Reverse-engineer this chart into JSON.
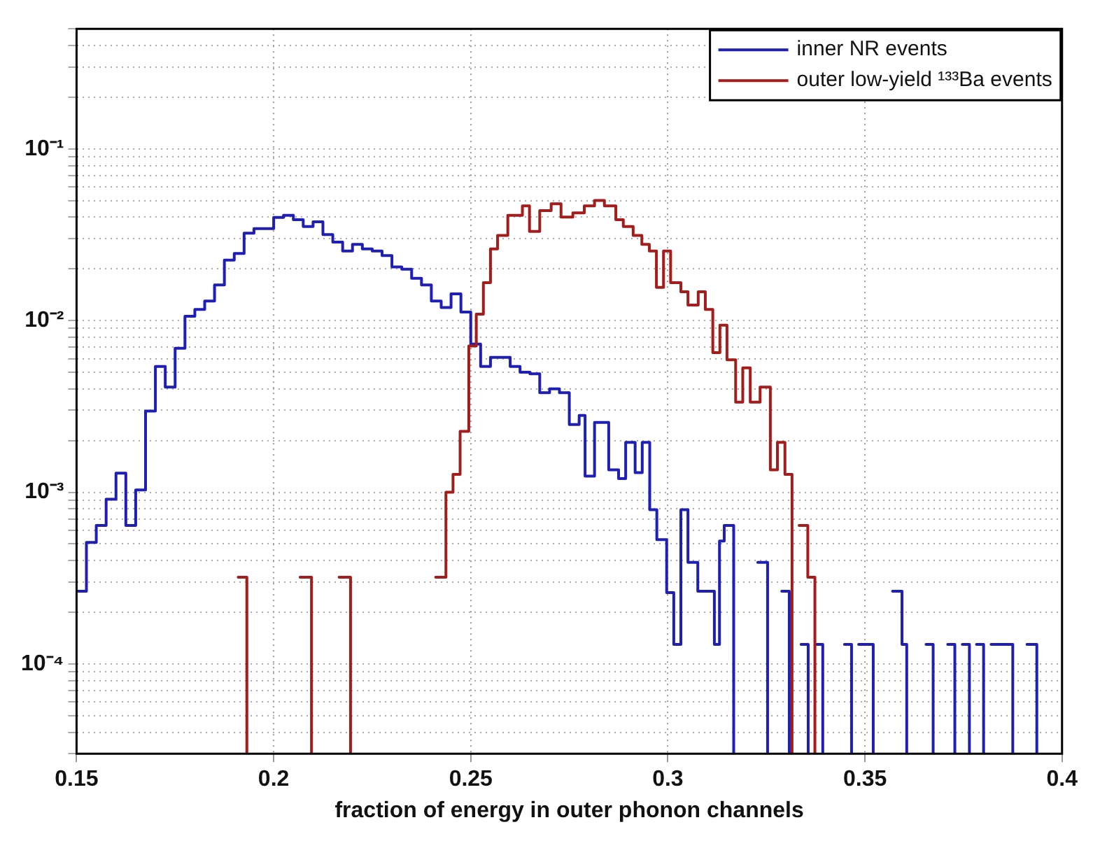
{
  "chart_data": {
    "type": "step",
    "xlabel": "fraction of energy in outer phonon channels",
    "xlim": [
      0.15,
      0.4
    ],
    "xticks": [
      0.15,
      0.2,
      0.25,
      0.3,
      0.35,
      0.4
    ],
    "ylim": [
      3e-05,
      0.5
    ],
    "log": "y",
    "grid": true,
    "legend": "top right",
    "yticks": [
      {
        "value": 3e-05,
        "label": null
      },
      {
        "value": 4e-05,
        "label": null
      },
      {
        "value": 5e-05,
        "label": null
      },
      {
        "value": 6e-05,
        "label": null
      },
      {
        "value": 7e-05,
        "label": null
      },
      {
        "value": 8e-05,
        "label": null
      },
      {
        "value": 9e-05,
        "label": null
      },
      {
        "value": 0.0001,
        "label": "10⁻⁴"
      },
      {
        "value": 0.0002,
        "label": null
      },
      {
        "value": 0.0003,
        "label": null
      },
      {
        "value": 0.0004,
        "label": null
      },
      {
        "value": 0.0005,
        "label": null
      },
      {
        "value": 0.0006,
        "label": null
      },
      {
        "value": 0.0007,
        "label": null
      },
      {
        "value": 0.0008,
        "label": null
      },
      {
        "value": 0.0009,
        "label": null
      },
      {
        "value": 0.001,
        "label": "10⁻³"
      },
      {
        "value": 0.002,
        "label": null
      },
      {
        "value": 0.003,
        "label": null
      },
      {
        "value": 0.004,
        "label": null
      },
      {
        "value": 0.005,
        "label": null
      },
      {
        "value": 0.006,
        "label": null
      },
      {
        "value": 0.007,
        "label": null
      },
      {
        "value": 0.008,
        "label": null
      },
      {
        "value": 0.009,
        "label": null
      },
      {
        "value": 0.01,
        "label": "10⁻²"
      },
      {
        "value": 0.02,
        "label": null
      },
      {
        "value": 0.03,
        "label": null
      },
      {
        "value": 0.04,
        "label": null
      },
      {
        "value": 0.05,
        "label": null
      },
      {
        "value": 0.06,
        "label": null
      },
      {
        "value": 0.07,
        "label": null
      },
      {
        "value": 0.08,
        "label": null
      },
      {
        "value": 0.09,
        "label": null
      },
      {
        "value": 0.1,
        "label": "10⁻¹"
      },
      {
        "value": 0.2,
        "label": null
      },
      {
        "value": 0.3,
        "label": null
      },
      {
        "value": 0.4,
        "label": null
      },
      {
        "value": 0.5,
        "label": null
      }
    ],
    "series": [
      {
        "name": "inner NR events",
        "color": "#1f1fb4",
        "x": [
          0.15,
          0.1525,
          0.155,
          0.1575,
          0.16,
          0.1625,
          0.165,
          0.1675,
          0.17,
          0.1725,
          0.175,
          0.1775,
          0.18,
          0.1825,
          0.185,
          0.1875,
          0.19,
          0.1925,
          0.195,
          0.1975,
          0.2,
          0.2025,
          0.205,
          0.2075,
          0.21,
          0.2125,
          0.215,
          0.2175,
          0.22,
          0.2225,
          0.225,
          0.2275,
          0.23,
          0.2325,
          0.235,
          0.2375,
          0.24,
          0.2425,
          0.245,
          0.2475,
          0.25,
          0.2525,
          0.255,
          0.2575,
          0.26,
          0.2625,
          0.265,
          0.2675,
          0.27,
          0.2725,
          0.275,
          0.2775,
          0.279,
          0.2814,
          0.285,
          0.2875,
          0.2893,
          0.2917,
          0.2935,
          0.2954,
          0.2972,
          0.2997,
          0.3015,
          0.3033,
          0.3051,
          0.3076,
          0.3118,
          0.3131,
          0.3143,
          0.3167
        ],
        "values": [
          0.000265,
          0.00051,
          0.00064,
          0.00091,
          0.00129,
          0.00064,
          0.00103,
          0.00297,
          0.0054,
          0.0041,
          0.0069,
          0.0106,
          0.0116,
          0.013,
          0.0161,
          0.0225,
          0.0246,
          0.0323,
          0.0343,
          0.0343,
          0.0399,
          0.041,
          0.0387,
          0.0353,
          0.0376,
          0.0317,
          0.0286,
          0.0254,
          0.0278,
          0.0261,
          0.0254,
          0.0239,
          0.0205,
          0.0199,
          0.0176,
          0.0161,
          0.013,
          0.0119,
          0.0143,
          0.0112,
          0.0073,
          0.0054,
          0.0061,
          0.0061,
          0.0054,
          0.005,
          0.0049,
          0.0038,
          0.004,
          0.0038,
          0.00248,
          0.0028,
          0.00124,
          0.00255,
          0.00135,
          0.0012,
          0.00195,
          0.0013,
          0.00195,
          0.00079,
          0.00053,
          0.00026,
          0.00013,
          0.00079,
          0.00039,
          0.000265,
          0.00013,
          0.00052,
          0.00064,
          0.00064
        ]
      },
      {
        "color": "#1f1fb4",
        "x": [
          0.3228,
          0.3253
        ],
        "values": [
          0.00039,
          0.00039
        ]
      },
      {
        "color": "#1f1fb4",
        "x": [
          0.3289,
          0.3308
        ],
        "values": [
          0.000265,
          0.000265
        ]
      },
      {
        "color": "#1f1fb4",
        "x": [
          0.3338,
          0.3356
        ],
        "values": [
          0.00013,
          0.00013
        ]
      },
      {
        "color": "#1f1fb4",
        "x": [
          0.3375,
          0.3393
        ],
        "values": [
          0.00013,
          0.00013
        ]
      },
      {
        "color": "#1f1fb4",
        "x": [
          0.3448,
          0.3466
        ],
        "values": [
          0.00013,
          0.00013
        ]
      },
      {
        "color": "#1f1fb4",
        "x": [
          0.3484,
          0.3521
        ],
        "values": [
          0.00013,
          0.00013
        ]
      },
      {
        "color": "#1f1fb4",
        "x": [
          0.357,
          0.3594,
          0.3606
        ],
        "values": [
          0.000265,
          0.00013,
          0.00013
        ]
      },
      {
        "color": "#1f1fb4",
        "x": [
          0.3655,
          0.3673
        ],
        "values": [
          0.00013,
          0.00013
        ]
      },
      {
        "color": "#1f1fb4",
        "x": [
          0.371,
          0.3728
        ],
        "values": [
          0.00013,
          0.00013
        ]
      },
      {
        "color": "#1f1fb4",
        "x": [
          0.3747,
          0.3765
        ],
        "values": [
          0.00013,
          0.00013
        ]
      },
      {
        "color": "#1f1fb4",
        "x": [
          0.3783,
          0.3801
        ],
        "values": [
          0.00013,
          0.00013
        ]
      },
      {
        "color": "#1f1fb4",
        "x": [
          0.382,
          0.3875
        ],
        "values": [
          0.00013,
          0.00013
        ]
      },
      {
        "color": "#1f1fb4",
        "x": [
          0.3911,
          0.3936
        ],
        "values": [
          0.00013,
          0.00013
        ]
      },
      {
        "name": "outer low-yield ¹³³Ba events",
        "color": "#a31d1d",
        "x": [
          0.2411,
          0.2437,
          0.2455,
          0.2473,
          0.2495,
          0.2514,
          0.2532,
          0.255,
          0.2568,
          0.2594,
          0.2631,
          0.2649,
          0.2675,
          0.2704,
          0.2729,
          0.2759,
          0.2788,
          0.2814,
          0.2839,
          0.2868,
          0.2887,
          0.2912,
          0.2934,
          0.2953,
          0.2971,
          0.2989,
          0.3007,
          0.3033,
          0.3051,
          0.3077,
          0.3095,
          0.3114,
          0.3132,
          0.315,
          0.3172,
          0.319,
          0.3209,
          0.3234,
          0.326,
          0.3278,
          0.3297,
          0.3315
        ],
        "values": [
          0.00032,
          0.001,
          0.00127,
          0.00226,
          0.0071,
          0.0109,
          0.0166,
          0.0261,
          0.0313,
          0.041,
          0.0465,
          0.033,
          0.0437,
          0.0479,
          0.04,
          0.0424,
          0.0465,
          0.05,
          0.0465,
          0.0387,
          0.0353,
          0.0313,
          0.0278,
          0.0254,
          0.0156,
          0.0254,
          0.0166,
          0.0147,
          0.0123,
          0.0147,
          0.0116,
          0.0065,
          0.0094,
          0.0059,
          0.00335,
          0.0053,
          0.00335,
          0.0041,
          0.00135,
          0.00195,
          0.00127,
          0.00127
        ]
      },
      {
        "color": "#a31d1d",
        "x": [
          0.191,
          0.1932
        ],
        "values": [
          0.00032,
          0.00032
        ]
      },
      {
        "color": "#a31d1d",
        "x": [
          0.2067,
          0.2096
        ],
        "values": [
          0.00032,
          0.00032
        ]
      },
      {
        "color": "#a31d1d",
        "x": [
          0.2166,
          0.2195
        ],
        "values": [
          0.00032,
          0.00032
        ]
      },
      {
        "color": "#a31d1d",
        "x": [
          0.3333,
          0.3355,
          0.3373
        ],
        "values": [
          0.00064,
          0.00032,
          0.00032
        ]
      }
    ]
  }
}
